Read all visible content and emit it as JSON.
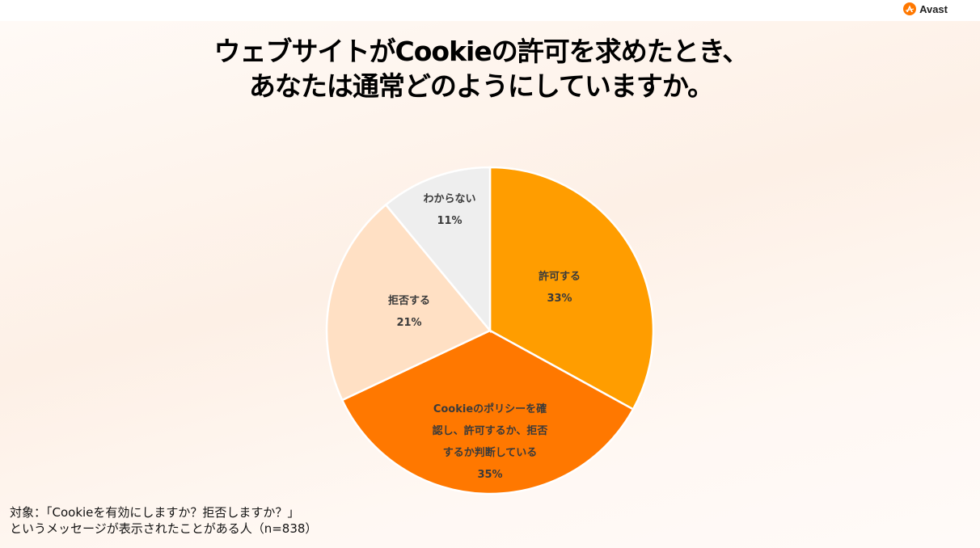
{
  "brand": {
    "name": "Avast",
    "logo_icon": "avast-logo-icon",
    "accent": "#FF7800"
  },
  "title": {
    "line1": "ウェブサイトがCookieの許可を求めたとき、",
    "line2": "あなたは通常どのようにしていますか。"
  },
  "footnote": {
    "line1": "対象：「Cookieを有効にしますか？拒否しますか？」",
    "line2": "というメッセージが表示されたことがある人（n=838）"
  },
  "chart_data": {
    "type": "pie",
    "title": "ウェブサイトがCookieの許可を求めたとき、あなたは通常どのようにしていますか。",
    "start_angle": "12 o'clock, clockwise",
    "n": 838,
    "categories": [
      "許可する",
      "Cookieのポリシーを確認し、許可するか、拒否するか判断している",
      "拒否する",
      "わからない"
    ],
    "values": [
      33,
      35,
      21,
      11
    ],
    "unit": "%",
    "colors": [
      "#FF9D00",
      "#FF7800",
      "#FFE0C4",
      "#EEEEEE"
    ],
    "labels": [
      {
        "lines": [
          "許可する"
        ],
        "pct": "33%"
      },
      {
        "lines": [
          "Cookieのポリシーを確",
          "認し、許可するか、拒否",
          "するか判断している"
        ],
        "pct": "35%"
      },
      {
        "lines": [
          "拒否する"
        ],
        "pct": "21%"
      },
      {
        "lines": [
          "わからない"
        ],
        "pct": "11%"
      }
    ],
    "legend": "none (labels inside slices)"
  }
}
